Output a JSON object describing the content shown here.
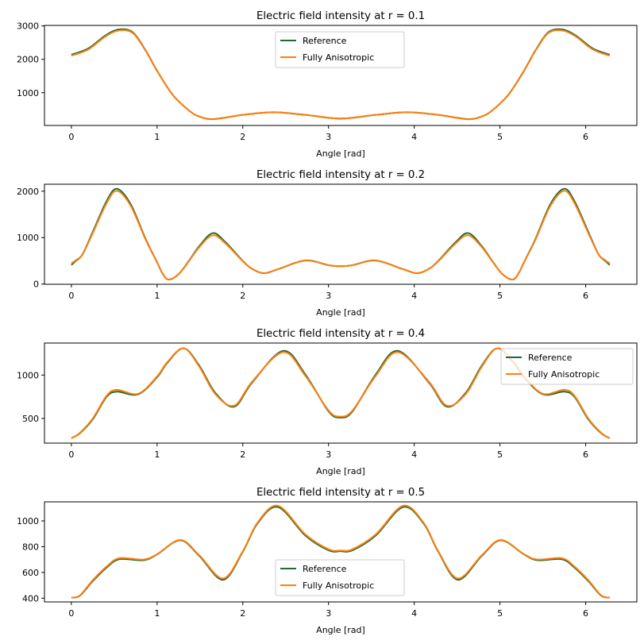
{
  "colors": {
    "reference": "#1b6b3a",
    "anisotropic": "#ff7f0e"
  },
  "chart_data": [
    {
      "type": "line",
      "title": "Electric field intensity at r = 0.1",
      "xlabel": "Angle [rad]",
      "ylabel": "",
      "xlim": [
        -0.314,
        6.597
      ],
      "ylim": [
        19,
        3016
      ],
      "xticks": [
        "0",
        "1",
        "2",
        "3",
        "4",
        "5",
        "6"
      ],
      "yticks": [
        "1000",
        "2000",
        "3000"
      ],
      "grid": false,
      "legend": "upper center",
      "x": [
        0,
        0.2,
        0.4,
        0.56,
        0.72,
        0.87,
        1.0,
        1.18,
        1.37,
        1.49,
        1.66,
        2.0,
        2.36,
        2.73,
        3.14,
        3.55,
        3.92,
        4.28,
        4.62,
        4.79,
        4.91,
        5.1,
        5.28,
        5.41,
        5.56,
        5.72,
        5.88,
        6.08,
        6.28
      ],
      "series": [
        {
          "name": "Reference",
          "values": [
            2138,
            2330,
            2720,
            2897,
            2800,
            2250,
            1656,
            945,
            470,
            290,
            210,
            336,
            415,
            336,
            225,
            336,
            415,
            336,
            210,
            290,
            470,
            945,
            1656,
            2250,
            2800,
            2897,
            2720,
            2330,
            2138
          ]
        },
        {
          "name": "Fully Anisotropic",
          "values": [
            2107,
            2300,
            2690,
            2866,
            2780,
            2240,
            1650,
            945,
            470,
            290,
            205,
            336,
            415,
            336,
            225,
            336,
            415,
            336,
            205,
            290,
            470,
            945,
            1650,
            2240,
            2780,
            2866,
            2690,
            2300,
            2107
          ]
        }
      ]
    },
    {
      "type": "line",
      "title": "Electric field intensity at r = 0.2",
      "xlabel": "Angle [rad]",
      "ylabel": "",
      "xlim": [
        -0.314,
        6.597
      ],
      "ylim": [
        -5,
        2150
      ],
      "xticks": [
        "0",
        "1",
        "2",
        "3",
        "4",
        "5",
        "6"
      ],
      "yticks": [
        "0",
        "1000",
        "2000"
      ],
      "grid": false,
      "legend": "upper center",
      "x": [
        0,
        0.05,
        0.13,
        0.25,
        0.41,
        0.53,
        0.69,
        0.87,
        1.0,
        1.06,
        1.13,
        1.25,
        1.37,
        1.49,
        1.65,
        1.8,
        2.0,
        2.11,
        2.25,
        2.42,
        2.73,
        3.0,
        3.14,
        3.28,
        3.55,
        3.86,
        4.03,
        4.17,
        4.28,
        4.48,
        4.63,
        4.79,
        4.91,
        5.03,
        5.15,
        5.22,
        5.28,
        5.41,
        5.59,
        5.75,
        5.87,
        6.03,
        6.15,
        6.23,
        6.28
      ],
      "series": [
        {
          "name": "Reference",
          "values": [
            411,
            497,
            640,
            1126,
            1783,
            2051,
            1726,
            954,
            469,
            240,
            97,
            211,
            497,
            811,
            1097,
            897,
            497,
            326,
            234,
            326,
            509,
            406,
            383,
            406,
            509,
            326,
            234,
            326,
            497,
            897,
            1097,
            811,
            497,
            211,
            97,
            240,
            469,
            954,
            1726,
            2051,
            1783,
            1126,
            640,
            497,
            411
          ]
        },
        {
          "name": "Fully Anisotropic",
          "values": [
            446,
            510,
            640,
            1100,
            1740,
            2006,
            1690,
            940,
            469,
            240,
            97,
            211,
            490,
            790,
            1051,
            870,
            490,
            326,
            234,
            326,
            505,
            406,
            383,
            406,
            505,
            326,
            234,
            326,
            490,
            870,
            1051,
            790,
            490,
            211,
            97,
            240,
            469,
            940,
            1690,
            2006,
            1740,
            1100,
            640,
            510,
            446
          ]
        }
      ]
    },
    {
      "type": "line",
      "title": "Electric field intensity at r = 0.4",
      "xlabel": "Angle [rad]",
      "ylabel": "",
      "xlim": [
        -0.314,
        6.597
      ],
      "ylim": [
        216,
        1369
      ],
      "xticks": [
        "0",
        "1",
        "2",
        "3",
        "4",
        "5",
        "6"
      ],
      "yticks": [
        "500",
        "1000"
      ],
      "grid": false,
      "legend": "upper right",
      "x": [
        0,
        0.1,
        0.25,
        0.41,
        0.53,
        0.78,
        1.0,
        1.12,
        1.31,
        1.49,
        1.68,
        1.9,
        2.11,
        2.47,
        2.73,
        3.0,
        3.14,
        3.28,
        3.55,
        3.81,
        4.17,
        4.38,
        4.6,
        4.79,
        4.97,
        5.16,
        5.28,
        5.5,
        5.75,
        5.87,
        6.03,
        6.18,
        6.28
      ],
      "series": [
        {
          "name": "Reference",
          "values": [
            273,
            330,
            491,
            748,
            809,
            779,
            976,
            1142,
            1309,
            1112,
            794,
            636,
            915,
            1279,
            1006,
            582,
            510,
            582,
            1006,
            1279,
            915,
            636,
            794,
            1112,
            1309,
            1142,
            976,
            779,
            809,
            748,
            491,
            330,
            273
          ]
        },
        {
          "name": "Fully Anisotropic",
          "values": [
            270,
            335,
            500,
            760,
            830,
            785,
            985,
            1150,
            1309,
            1100,
            780,
            648,
            925,
            1264,
            990,
            592,
            522,
            592,
            990,
            1264,
            925,
            648,
            780,
            1100,
            1309,
            1150,
            985,
            785,
            830,
            760,
            500,
            335,
            270
          ]
        }
      ]
    },
    {
      "type": "line",
      "title": "Electric field intensity at r = 0.5",
      "xlabel": "Angle [rad]",
      "ylabel": "",
      "xlim": [
        -0.314,
        6.597
      ],
      "ylim": [
        371,
        1148
      ],
      "xticks": [
        "0",
        "1",
        "2",
        "3",
        "4",
        "5",
        "6"
      ],
      "yticks": [
        "400",
        "600",
        "800",
        "1000"
      ],
      "grid": false,
      "legend": "lower center",
      "x": [
        0,
        0.1,
        0.25,
        0.41,
        0.56,
        0.84,
        1.0,
        1.27,
        1.49,
        1.77,
        2.0,
        2.17,
        2.41,
        2.73,
        3.0,
        3.14,
        3.28,
        3.55,
        3.87,
        4.11,
        4.28,
        4.51,
        4.79,
        5.01,
        5.28,
        5.44,
        5.72,
        5.87,
        6.03,
        6.18,
        6.28
      ],
      "series": [
        {
          "name": "Reference",
          "values": [
            404,
            420,
            533,
            637,
            703,
            695,
            740,
            850,
            730,
            543,
            761,
            979,
            1108,
            886,
            772,
            765,
            772,
            886,
            1108,
            979,
            761,
            543,
            730,
            850,
            740,
            695,
            703,
            637,
            533,
            420,
            404
          ]
        },
        {
          "name": "Fully Anisotropic",
          "values": [
            404,
            422,
            540,
            645,
            711,
            700,
            742,
            852,
            735,
            553,
            765,
            985,
            1118,
            895,
            780,
            770,
            780,
            895,
            1118,
            985,
            765,
            553,
            735,
            852,
            742,
            700,
            711,
            645,
            540,
            422,
            404
          ]
        }
      ]
    }
  ]
}
